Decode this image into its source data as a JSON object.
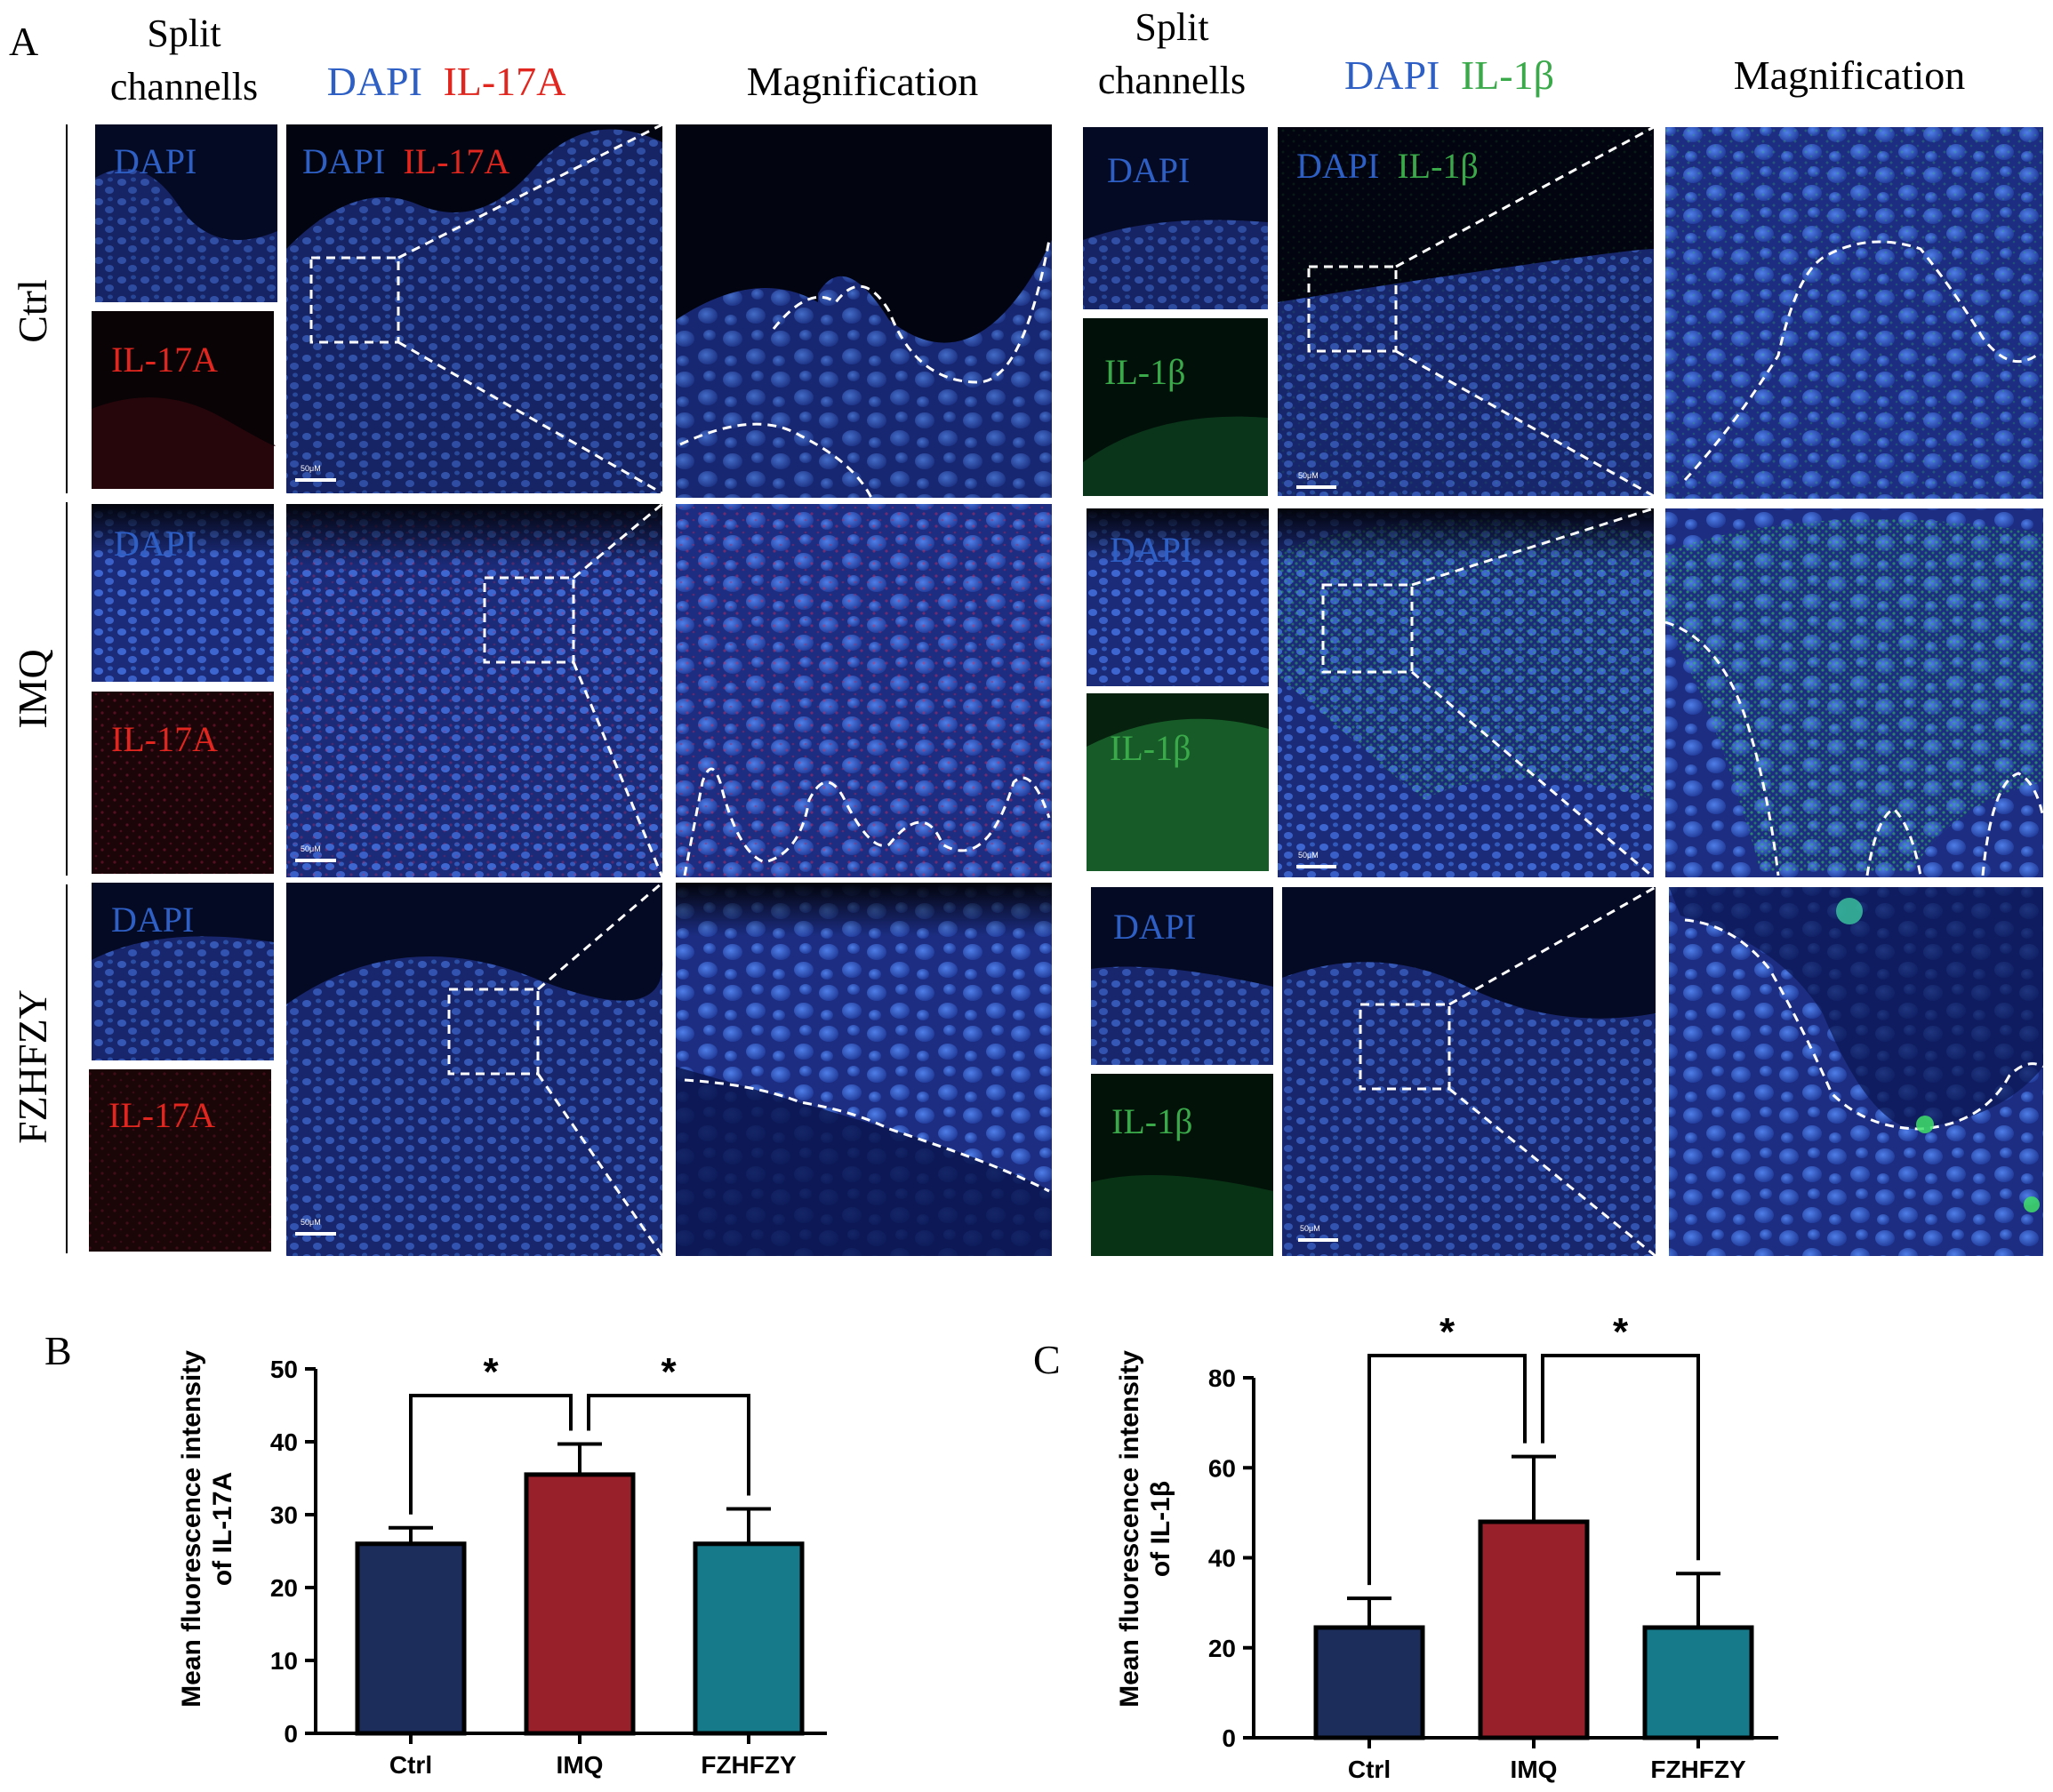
{
  "panel_a": {
    "letter": "A",
    "groups": [
      "Ctrl",
      "IMQ",
      "FZHFZY"
    ],
    "left": {
      "split_header": [
        "Split",
        "channells"
      ],
      "merge_header_dapi": "DAPI",
      "merge_header_marker": "IL-17A",
      "magnification_header": "Magnification",
      "split_labels": [
        "DAPI",
        "IL-17A"
      ],
      "merge_label_dapi": "DAPI",
      "merge_label_marker": "IL-17A",
      "marker_color": "#e0261e",
      "scale_bar": "50μM"
    },
    "right": {
      "split_header": [
        "Split",
        "channells"
      ],
      "merge_header_dapi": "DAPI",
      "merge_header_marker": "IL-1β",
      "magnification_header": "Magnification",
      "split_labels": [
        "DAPI",
        "IL-1β"
      ],
      "merge_label_dapi": "DAPI",
      "merge_label_marker": "IL-1β",
      "marker_color": "#3aa94a",
      "scale_bar": "50μM"
    },
    "dapi_color": "#2e5fc4"
  },
  "chart_data": [
    {
      "letter": "B",
      "type": "bar",
      "ylabel": [
        "Mean fluorescence intensity",
        "of IL-17A"
      ],
      "categories": [
        "Ctrl",
        "IMQ",
        "FZHFZY"
      ],
      "values": [
        26,
        35.5,
        26
      ],
      "errors": [
        2.2,
        4.2,
        4.8
      ],
      "colors": [
        "#1c2d5c",
        "#98202a",
        "#167a8a"
      ],
      "ylim": [
        0,
        50
      ],
      "yticks": [
        0,
        10,
        20,
        30,
        40,
        50
      ],
      "significance": [
        "*",
        "*"
      ]
    },
    {
      "letter": "C",
      "type": "bar",
      "ylabel": [
        "Mean fluorescence intensity",
        "of IL-1β"
      ],
      "categories": [
        "Ctrl",
        "IMQ",
        "FZHFZY"
      ],
      "values": [
        24.5,
        48,
        24.5
      ],
      "errors": [
        6.5,
        14.5,
        12
      ],
      "colors": [
        "#1c2d5c",
        "#98202a",
        "#167a8a"
      ],
      "ylim": [
        0,
        80
      ],
      "yticks": [
        0,
        20,
        40,
        60,
        80
      ],
      "significance": [
        "*",
        "*"
      ]
    }
  ]
}
